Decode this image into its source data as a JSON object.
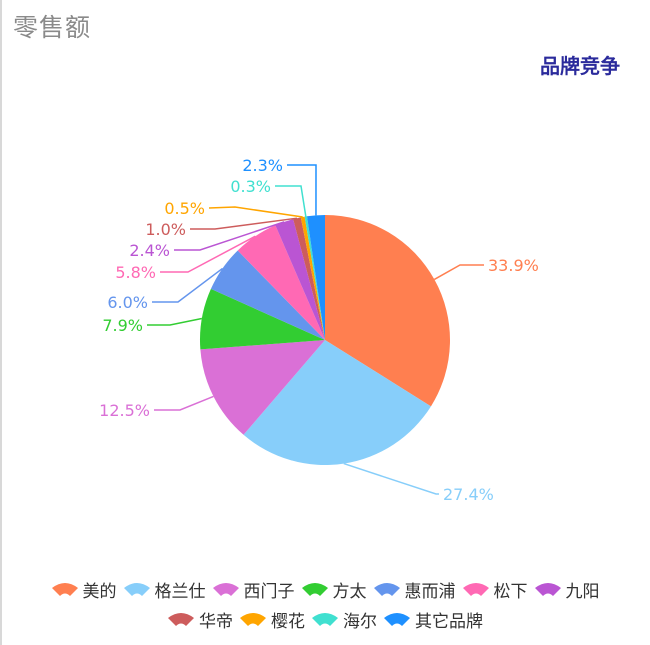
{
  "header": {
    "title": "零售额",
    "subtitle": "品牌竞争"
  },
  "chart_data": {
    "type": "pie",
    "title": "品牌竞争",
    "categories": [
      "美的",
      "格兰仕",
      "西门子",
      "方太",
      "惠而浦",
      "松下",
      "九阳",
      "华帝",
      "樱花",
      "海尔",
      "其它品牌"
    ],
    "values": [
      33.9,
      27.4,
      12.5,
      7.9,
      6.0,
      5.8,
      2.4,
      1.0,
      0.5,
      0.3,
      2.3
    ],
    "labels": [
      "33.9%",
      "27.4%",
      "12.5%",
      "7.9%",
      "6.0%",
      "5.8%",
      "2.4%",
      "1.0%",
      "0.5%",
      "0.3%",
      "2.3%"
    ],
    "colors": [
      "#ff7f50",
      "#87cefa",
      "#da70d6",
      "#32cd32",
      "#6495ed",
      "#ff69b4",
      "#ba55d3",
      "#cd5c5c",
      "#ffa500",
      "#40e0d0",
      "#1e90ff"
    ],
    "legend_position": "bottom",
    "start_angle_deg": 90,
    "direction": "clockwise"
  },
  "legend": {
    "rows": [
      [
        0,
        1,
        2,
        3,
        4,
        5,
        6
      ],
      [
        7,
        8,
        9,
        10
      ]
    ]
  }
}
